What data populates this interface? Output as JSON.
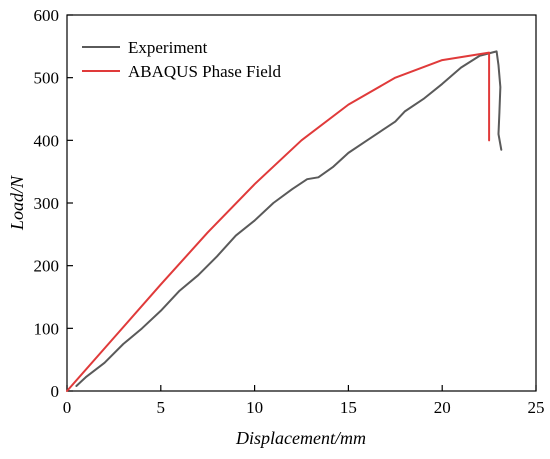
{
  "chart_data": {
    "type": "line",
    "xlabel": "Displacement/mm",
    "ylabel": "Load/N",
    "xlim": [
      0,
      25
    ],
    "ylim": [
      0,
      600
    ],
    "xticks": [
      "0",
      "5",
      "10",
      "15",
      "20",
      "25"
    ],
    "yticks": [
      "0",
      "100",
      "200",
      "300",
      "400",
      "500",
      "600"
    ],
    "grid": false,
    "legend_position": "top-left",
    "series": [
      {
        "name": "Experiment",
        "color": "#5a5a5a",
        "x": [
          0.5,
          1.0,
          2.0,
          3.0,
          4.0,
          5.0,
          6.0,
          7.0,
          8.0,
          9.0,
          10.0,
          11.0,
          12.0,
          12.8,
          13.4,
          14.2,
          15.0,
          16.0,
          17.0,
          17.5,
          18.0,
          19.0,
          20.0,
          21.0,
          22.0,
          22.9,
          23.0,
          23.1,
          23.05,
          23.0,
          23.15
        ],
        "y": [
          8,
          22,
          45,
          75,
          100,
          128,
          160,
          185,
          215,
          248,
          272,
          300,
          322,
          338,
          341,
          358,
          380,
          400,
          420,
          430,
          446,
          466,
          490,
          516,
          535,
          542,
          520,
          485,
          445,
          410,
          385
        ]
      },
      {
        "name": "ABAQUS Phase Field",
        "color": "#e03a3a",
        "x": [
          0.0,
          2.5,
          5.0,
          7.5,
          10.0,
          12.5,
          15.0,
          17.5,
          20.0,
          22.5,
          22.5
        ],
        "y": [
          0,
          85,
          170,
          253,
          330,
          400,
          457,
          500,
          528,
          540,
          400
        ]
      }
    ]
  }
}
